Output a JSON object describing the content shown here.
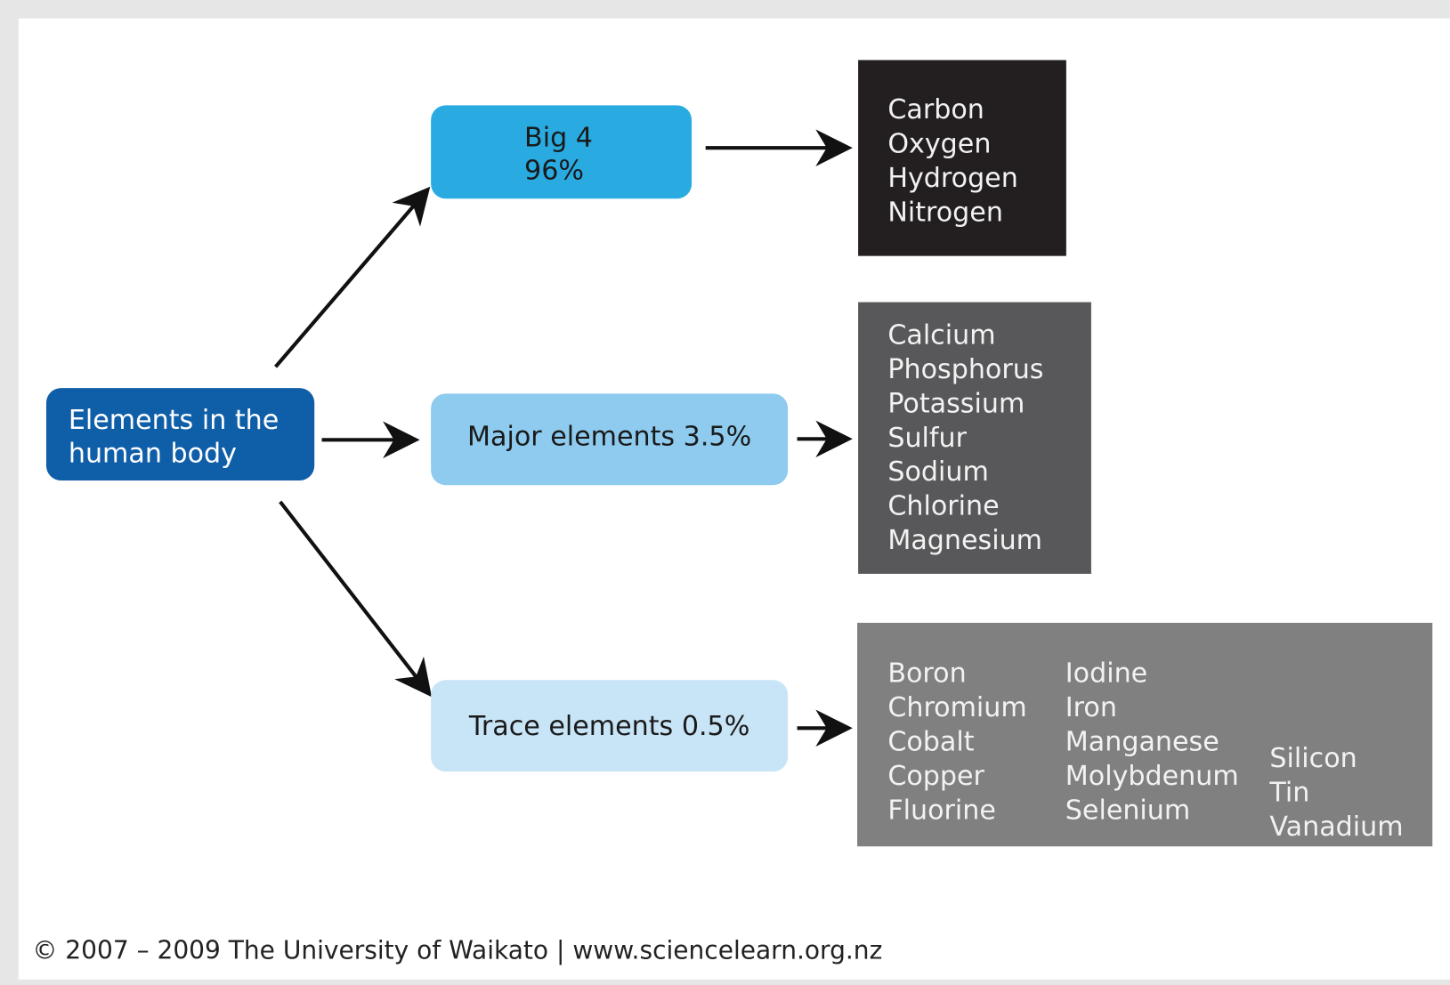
{
  "root": {
    "label_lines": [
      "Elements in the",
      "human body"
    ]
  },
  "groups": [
    {
      "label_lines": [
        "Big 4",
        "96%"
      ],
      "element_columns": [
        [
          "Carbon",
          "Oxygen",
          "Hydrogen",
          "Nitrogen"
        ]
      ]
    },
    {
      "label_lines": [
        "Major elements 3.5%"
      ],
      "element_columns": [
        [
          "Calcium",
          "Phosphorus",
          "Potassium",
          "Sulfur",
          "Sodium",
          "Chlorine",
          "Magnesium"
        ]
      ]
    },
    {
      "label_lines": [
        "Trace elements 0.5%"
      ],
      "element_columns": [
        [
          "Boron",
          "Chromium",
          "Cobalt",
          "Copper",
          "Fluorine"
        ],
        [
          "Iodine",
          "Iron",
          "Manganese",
          "Molybdenum",
          "Selenium"
        ],
        [
          "Silicon",
          "Tin",
          "Vanadium"
        ]
      ]
    }
  ],
  "footer": "© 2007 – 2009 The University of Waikato | www.sciencelearn.org.nz"
}
